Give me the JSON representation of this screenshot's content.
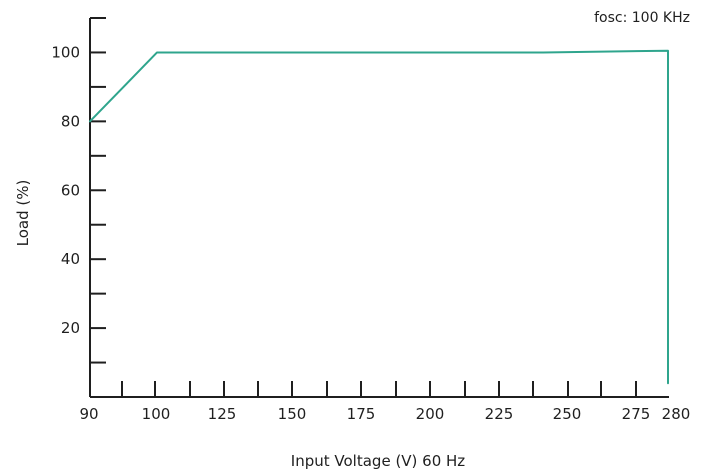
{
  "chart_data": {
    "type": "line",
    "annotation": "fosc: 100 KHz",
    "xlabel": "Input Voltage (V) 60 Hz",
    "ylabel": "Load (%)",
    "xlim": [
      90,
      280
    ],
    "ylim": [
      0,
      110
    ],
    "x_tick_labels": [
      "90",
      "100",
      "125",
      "150",
      "175",
      "200",
      "225",
      "250",
      "275",
      "280"
    ],
    "y_tick_labels": [
      "100",
      "80",
      "60",
      "40",
      "20"
    ],
    "series": [
      {
        "x": [
          90,
          100,
          250,
          280,
          280
        ],
        "y": [
          80,
          100,
          100,
          100.5,
          4
        ],
        "color": "#2fa58d"
      }
    ]
  }
}
